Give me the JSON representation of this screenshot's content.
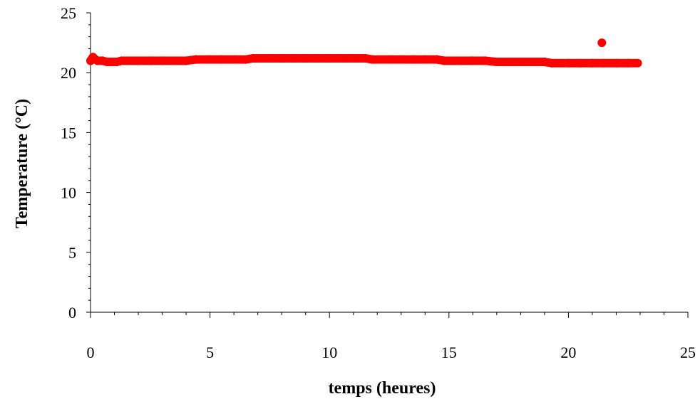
{
  "chart_data": {
    "type": "scatter",
    "title": "",
    "xlabel": "temps (heures)",
    "ylabel": "Temperature (°C)",
    "xlim": [
      0,
      25
    ],
    "ylim": [
      0,
      25
    ],
    "xticks": [
      "0",
      "5",
      "10",
      "15",
      "20",
      "25"
    ],
    "yticks": [
      "0",
      "5",
      "10",
      "15",
      "20",
      "25"
    ],
    "grid": false,
    "legend": "none",
    "marker_color": "#ff0000",
    "series": [
      {
        "points": [
          [
            0.0,
            21.0
          ],
          [
            0.1,
            21.3
          ],
          [
            0.2,
            21.1
          ],
          [
            0.3,
            21.0
          ],
          [
            0.5,
            21.0
          ],
          [
            0.7,
            20.9
          ],
          [
            0.9,
            20.9
          ],
          [
            1.1,
            20.9
          ],
          [
            1.3,
            21.0
          ],
          [
            1.5,
            21.0
          ],
          [
            2.0,
            21.0
          ],
          [
            2.5,
            21.0
          ],
          [
            3.0,
            21.0
          ],
          [
            3.5,
            21.0
          ],
          [
            4.0,
            21.0
          ],
          [
            4.4,
            21.1
          ],
          [
            5.0,
            21.1
          ],
          [
            5.5,
            21.1
          ],
          [
            6.0,
            21.1
          ],
          [
            6.5,
            21.1
          ],
          [
            6.8,
            21.2
          ],
          [
            7.5,
            21.2
          ],
          [
            8.0,
            21.2
          ],
          [
            8.5,
            21.2
          ],
          [
            9.0,
            21.2
          ],
          [
            9.5,
            21.2
          ],
          [
            10.0,
            21.2
          ],
          [
            10.5,
            21.2
          ],
          [
            11.0,
            21.2
          ],
          [
            11.5,
            21.2
          ],
          [
            11.8,
            21.1
          ],
          [
            12.5,
            21.1
          ],
          [
            13.0,
            21.1
          ],
          [
            13.5,
            21.1
          ],
          [
            14.0,
            21.1
          ],
          [
            14.5,
            21.1
          ],
          [
            14.8,
            21.0
          ],
          [
            15.5,
            21.0
          ],
          [
            16.0,
            21.0
          ],
          [
            16.5,
            21.0
          ],
          [
            17.0,
            20.9
          ],
          [
            17.5,
            20.9
          ],
          [
            18.0,
            20.9
          ],
          [
            18.5,
            20.9
          ],
          [
            19.0,
            20.9
          ],
          [
            19.3,
            20.8
          ],
          [
            20.0,
            20.8
          ],
          [
            20.5,
            20.8
          ],
          [
            21.0,
            20.8
          ],
          [
            21.5,
            20.8
          ],
          [
            21.4,
            22.5
          ],
          [
            22.0,
            20.8
          ],
          [
            22.5,
            20.8
          ],
          [
            22.9,
            20.8
          ]
        ]
      }
    ]
  }
}
